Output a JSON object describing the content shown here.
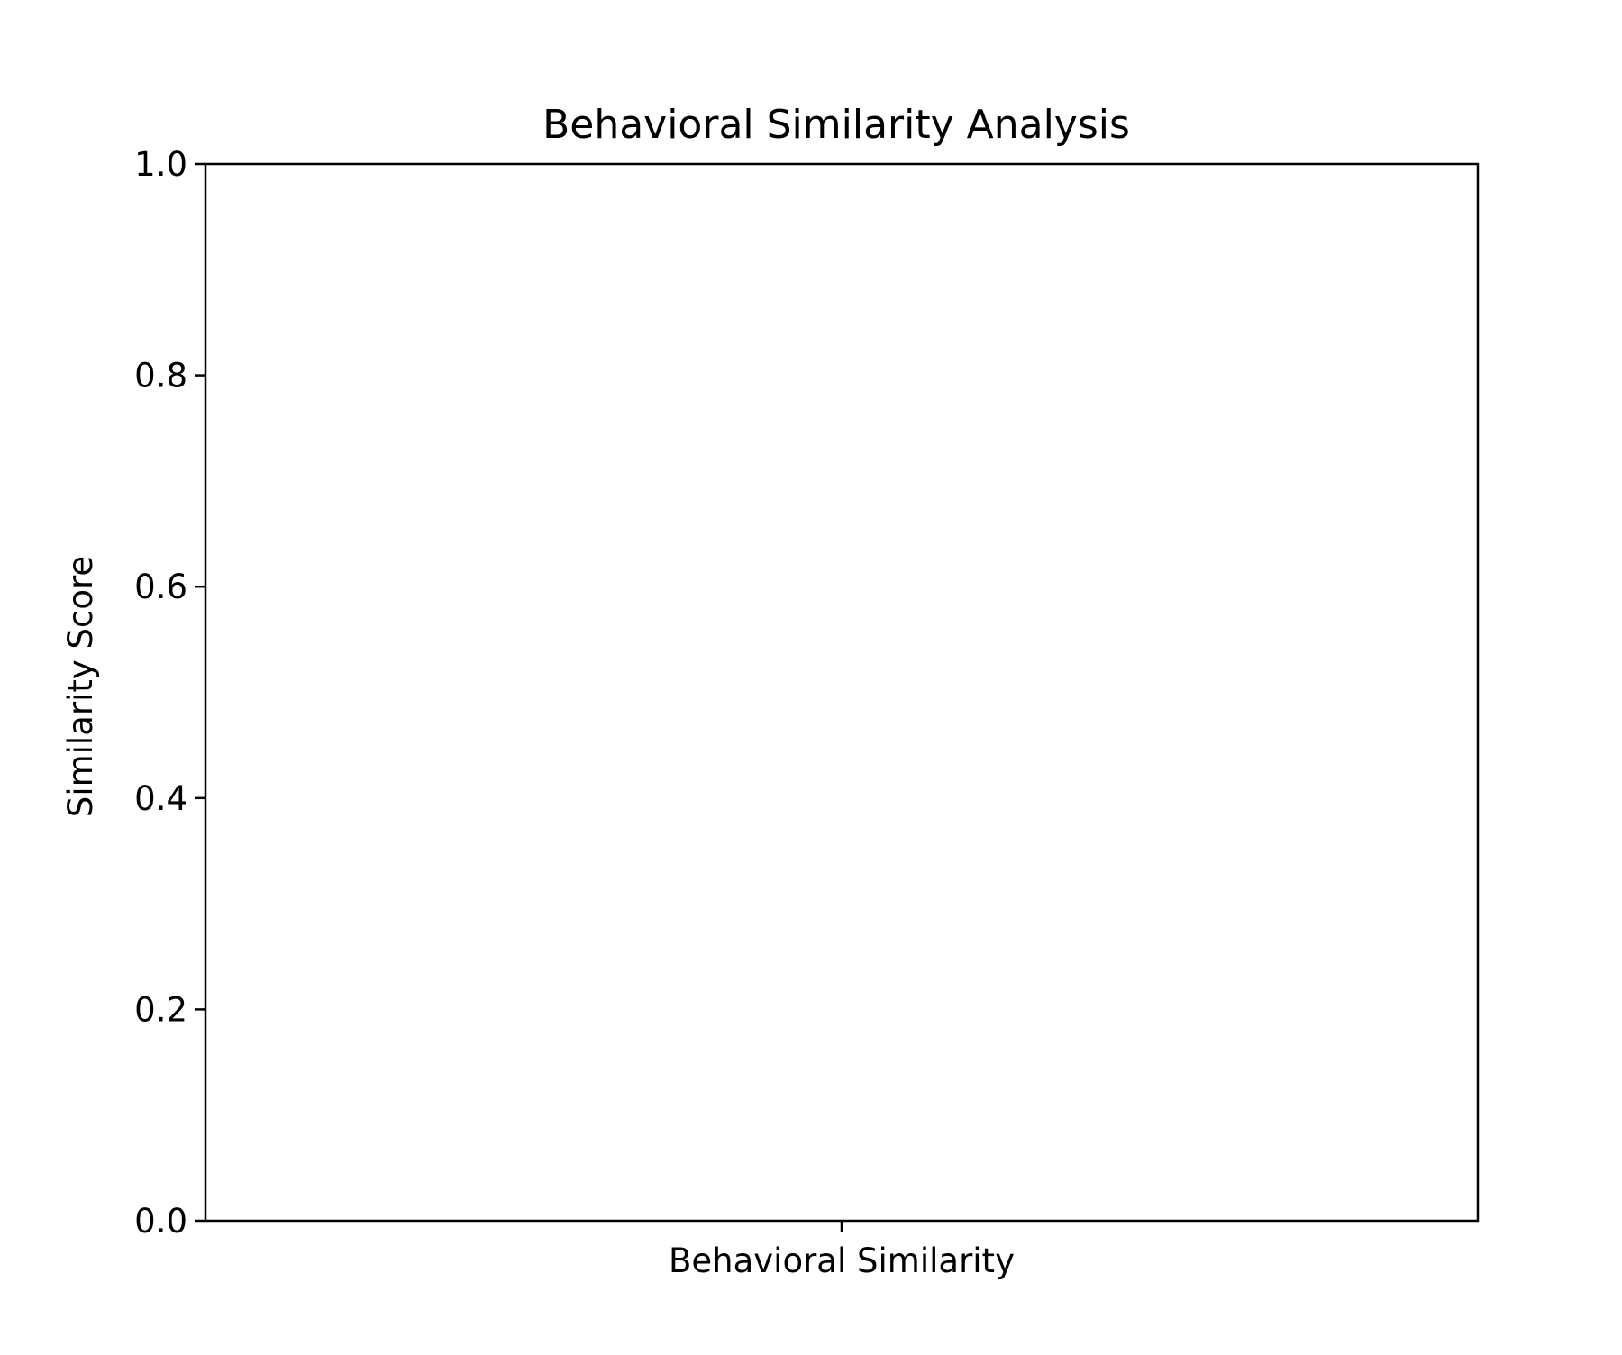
{
  "chart_data": {
    "type": "bar",
    "title": "Behavioral Similarity Analysis",
    "xlabel": "",
    "ylabel": "Similarity Score",
    "categories": [
      "Behavioral Similarity"
    ],
    "values": [
      0.0
    ],
    "ylim": [
      0,
      1
    ],
    "yticks": [
      "0.0",
      "0.2",
      "0.4",
      "0.6",
      "0.8",
      "1.0"
    ],
    "grid": false,
    "legend": "none"
  },
  "colors": {
    "axis": "#000000",
    "background": "#ffffff"
  }
}
